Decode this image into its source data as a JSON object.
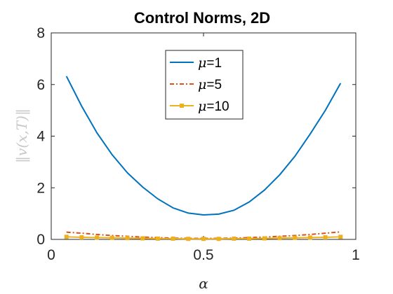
{
  "chart_data": {
    "type": "line",
    "title": "Control Norms, 2D",
    "xlabel": "α",
    "ylabel": "‖v(x,T)‖",
    "xlim": [
      0,
      1
    ],
    "ylim": [
      0,
      8
    ],
    "xticks": [
      0,
      0.5,
      1
    ],
    "xtick_labels": [
      "0",
      "0.5",
      "1"
    ],
    "yticks": [
      0,
      2,
      4,
      6,
      8
    ],
    "ytick_labels": [
      "0",
      "2",
      "4",
      "6",
      "8"
    ],
    "grid": false,
    "legend_position": "top-center",
    "x": [
      0.05,
      0.1,
      0.15,
      0.2,
      0.25,
      0.3,
      0.35,
      0.4,
      0.45,
      0.5,
      0.55,
      0.6,
      0.65,
      0.7,
      0.75,
      0.8,
      0.85,
      0.9,
      0.95
    ],
    "series": [
      {
        "name": "μ=1",
        "legend_mu": "μ",
        "legend_value": "=1",
        "color": "#0072BD",
        "style": "solid",
        "values": [
          6.32,
          5.16,
          4.13,
          3.28,
          2.58,
          2.03,
          1.57,
          1.22,
          1.02,
          0.95,
          0.98,
          1.13,
          1.45,
          1.91,
          2.5,
          3.22,
          4.08,
          5.0,
          6.05
        ]
      },
      {
        "name": "μ=5",
        "legend_mu": "μ",
        "legend_value": "=5",
        "color": "#D95319",
        "style": "dashdot",
        "values": [
          0.28,
          0.24,
          0.19,
          0.15,
          0.12,
          0.09,
          0.07,
          0.05,
          0.04,
          0.04,
          0.04,
          0.05,
          0.07,
          0.09,
          0.12,
          0.15,
          0.19,
          0.24,
          0.29
        ]
      },
      {
        "name": "μ=10",
        "legend_mu": "μ",
        "legend_value": "=10",
        "color": "#EDB120",
        "style": "solid-markers",
        "values": [
          0.1,
          0.08,
          0.07,
          0.06,
          0.05,
          0.04,
          0.03,
          0.03,
          0.02,
          0.02,
          0.02,
          0.03,
          0.03,
          0.04,
          0.05,
          0.06,
          0.07,
          0.08,
          0.1
        ]
      }
    ]
  }
}
